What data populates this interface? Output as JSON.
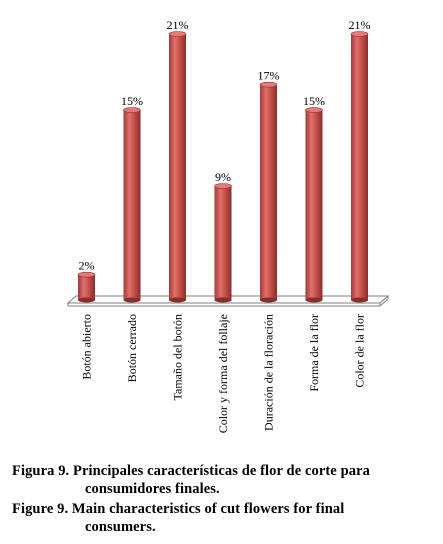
{
  "chart_data": {
    "type": "bar",
    "categories": [
      "Botón abierto",
      "Botón cerrado",
      "Tamaño del botón",
      "Color y forma del follaje",
      "Duración de la floración",
      "Forma de la flor",
      "Color de la flor"
    ],
    "values": [
      2,
      15,
      21,
      9,
      17,
      15,
      21
    ],
    "data_labels": [
      "2%",
      "15%",
      "21%",
      "9%",
      "17%",
      "15%",
      "21%"
    ],
    "ylim": [
      0,
      21
    ],
    "grid": false,
    "legend": "none",
    "style": "3d-cylinder",
    "bar_color": "#c0504d",
    "bar_highlight": "#e57a77",
    "bar_shadow": "#8a2e2c",
    "floor_color": "#ffffff"
  },
  "caption": {
    "es_line1": "Figura 9. Principales características de flor de corte para",
    "es_line2": "consumidores finales.",
    "en_line1": "Figure 9. Main characteristics of cut flowers for final",
    "en_line2": "consumers."
  }
}
